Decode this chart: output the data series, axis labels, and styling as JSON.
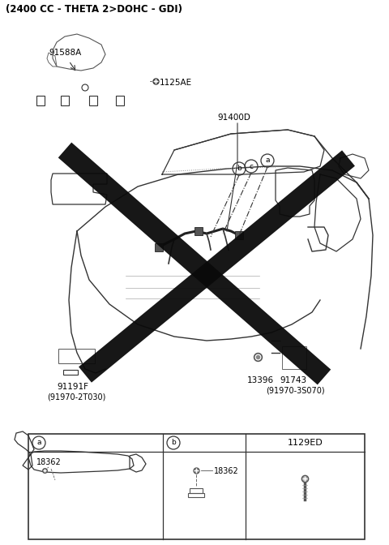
{
  "title": "(2400 CC - THETA 2>DOHC - GDI)",
  "bg_color": "#ffffff",
  "text_color": "#000000",
  "labels": {
    "top_left_part": "91588A",
    "screw_label": "1125AE",
    "top_center": "91400D",
    "bottom_left_part": "91191F",
    "bottom_left_sub": "(91970-2T030)",
    "bottom_right_label1": "13396",
    "bottom_right_part": "91743",
    "bottom_right_sub": "(91970-3S070)",
    "circle_a": "a",
    "circle_b": "b",
    "circle_c": "c"
  },
  "table": {
    "col1_label": "a",
    "col2_label": "b",
    "col3_label": "1129ED",
    "part_18362_a": "18362",
    "part_18362_b": "18362"
  }
}
